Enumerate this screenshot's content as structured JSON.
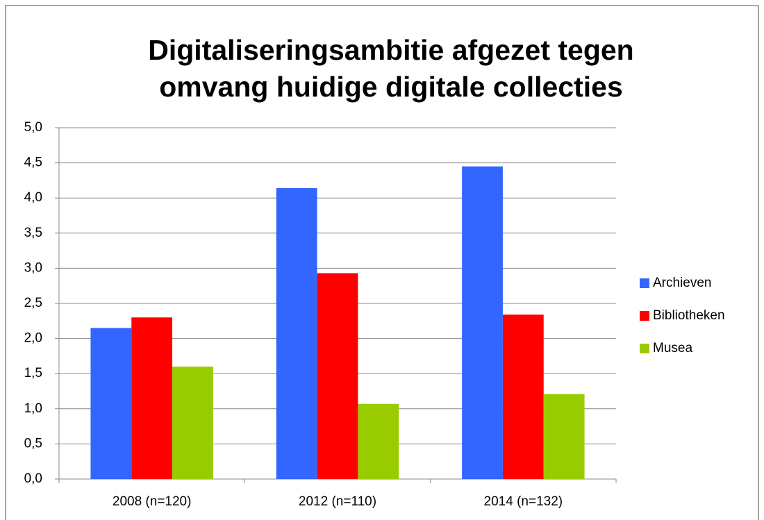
{
  "chart_data": {
    "type": "bar",
    "title": [
      "Digitaliseringsambitie afgezet tegen",
      "omvang huidige digitale collecties"
    ],
    "categories": [
      "2008 (n=120)",
      "2012 (n=110)",
      "2014 (n=132)"
    ],
    "series": [
      {
        "name": "Archieven",
        "color": "#3366ff",
        "values": [
          2.15,
          4.14,
          4.45
        ]
      },
      {
        "name": "Bibliotheken",
        "color": "#ff0000",
        "values": [
          2.3,
          2.93,
          2.34
        ]
      },
      {
        "name": "Musea",
        "color": "#99cc00",
        "values": [
          1.6,
          1.07,
          1.21
        ]
      }
    ],
    "ylim": [
      0,
      5
    ],
    "yticks": [
      {
        "value": 0,
        "label": "0,0"
      },
      {
        "value": 0.5,
        "label": "0,5"
      },
      {
        "value": 1,
        "label": "1,0"
      },
      {
        "value": 1.5,
        "label": "1,5"
      },
      {
        "value": 2,
        "label": "2,0"
      },
      {
        "value": 2.5,
        "label": "2,5"
      },
      {
        "value": 3,
        "label": "3,0"
      },
      {
        "value": 3.5,
        "label": "3,5"
      },
      {
        "value": 4,
        "label": "4,0"
      },
      {
        "value": 4.5,
        "label": "4,5"
      },
      {
        "value": 5,
        "label": "5,0"
      }
    ],
    "grid": true,
    "legend": "right"
  }
}
